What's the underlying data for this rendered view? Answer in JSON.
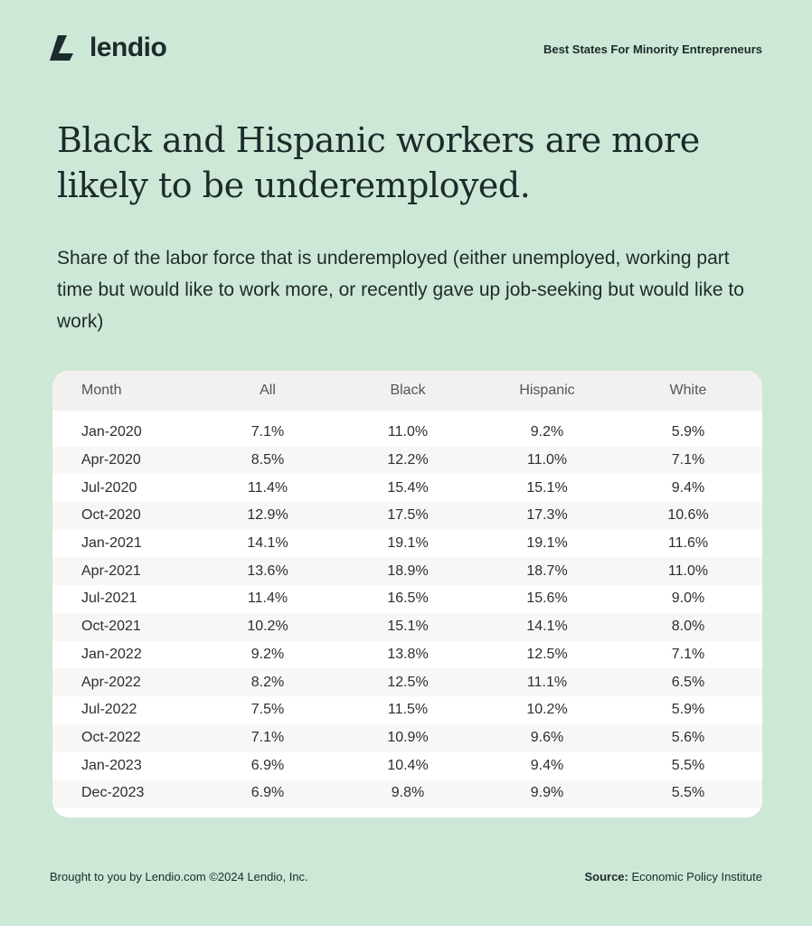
{
  "brand": {
    "name": "lendio"
  },
  "header": {
    "report_title": "Best States For Minority Entrepreneurs"
  },
  "title": "Black and Hispanic workers are more likely to be underemployed.",
  "subtitle": "Share of the labor force that is underemployed (either unemployed, working part time but would like to work more, or recently gave up job-seeking but would like to work)",
  "colors": {
    "background": "#cde8d6",
    "card": "#ffffff",
    "header_row": "#f3f1ef",
    "text": "#1c2b2b"
  },
  "chart_data": {
    "type": "table",
    "columns": [
      "Month",
      "All",
      "Black",
      "Hispanic",
      "White"
    ],
    "rows": [
      [
        "Jan-2020",
        "7.1%",
        "11.0%",
        "9.2%",
        "5.9%"
      ],
      [
        "Apr-2020",
        "8.5%",
        "12.2%",
        "11.0%",
        "7.1%"
      ],
      [
        "Jul-2020",
        "11.4%",
        "15.4%",
        "15.1%",
        "9.4%"
      ],
      [
        "Oct-2020",
        "12.9%",
        "17.5%",
        "17.3%",
        "10.6%"
      ],
      [
        "Jan-2021",
        "14.1%",
        "19.1%",
        "19.1%",
        "11.6%"
      ],
      [
        "Apr-2021",
        "13.6%",
        "18.9%",
        "18.7%",
        "11.0%"
      ],
      [
        "Jul-2021",
        "11.4%",
        "16.5%",
        "15.6%",
        "9.0%"
      ],
      [
        "Oct-2021",
        "10.2%",
        "15.1%",
        "14.1%",
        "8.0%"
      ],
      [
        "Jan-2022",
        "9.2%",
        "13.8%",
        "12.5%",
        "7.1%"
      ],
      [
        "Apr-2022",
        "8.2%",
        "12.5%",
        "11.1%",
        "6.5%"
      ],
      [
        "Jul-2022",
        "7.5%",
        "11.5%",
        "10.2%",
        "5.9%"
      ],
      [
        "Oct-2022",
        "7.1%",
        "10.9%",
        "9.6%",
        "5.6%"
      ],
      [
        "Jan-2023",
        "6.9%",
        "10.4%",
        "9.4%",
        "5.5%"
      ],
      [
        "Dec-2023",
        "6.9%",
        "9.8%",
        "9.9%",
        "5.5%"
      ]
    ]
  },
  "footer": {
    "credit": "Brought to you by Lendio.com ©2024 Lendio, Inc.",
    "source_label": "Source:",
    "source_value": "Economic Policy Institute"
  }
}
